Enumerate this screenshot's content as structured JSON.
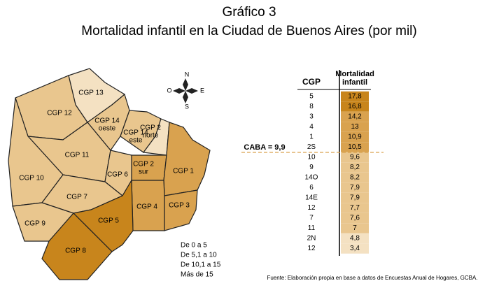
{
  "title": "Gráfico 3",
  "subtitle": "Mortalidad infantil en la Ciudad de Buenos Aires (por mil)",
  "compass": {
    "north": "N",
    "south": "S",
    "east": "E",
    "west": "O"
  },
  "map_labels": [
    "CGP 13",
    "CGP 12",
    "CGP 14\noeste",
    "CGP 14\neste",
    "CGP 2\nnorte",
    "CGP 11",
    "CGP 10",
    "CGP 2\nsur",
    "CGP 6",
    "CGP 1",
    "CGP 7",
    "CGP 4",
    "CGP 3",
    "CGP 9",
    "CGP 5",
    "CGP 8"
  ],
  "legend": [
    "De 0 a 5",
    "De 5,1 a 10",
    "De 10,1 a 15",
    "Más de 15"
  ],
  "table": {
    "headers": [
      "CGP",
      "Mortalidad\ninfantil"
    ],
    "rows": [
      {
        "cgp": "5",
        "value": "17,8",
        "color": "#c8851c"
      },
      {
        "cgp": "8",
        "value": "16,8",
        "color": "#c8851c"
      },
      {
        "cgp": "3",
        "value": "14,2",
        "color": "#d9a24f"
      },
      {
        "cgp": "4",
        "value": "13",
        "color": "#d9a24f"
      },
      {
        "cgp": "1",
        "value": "10,9",
        "color": "#d9a24f"
      },
      {
        "cgp": "2S",
        "value": "10,5",
        "color": "#d9a24f"
      },
      {
        "cgp": "10",
        "value": "9,6",
        "color": "#e9c68e"
      },
      {
        "cgp": "9",
        "value": "8,2",
        "color": "#e9c68e"
      },
      {
        "cgp": "14O",
        "value": "8,2",
        "color": "#e9c68e"
      },
      {
        "cgp": "6",
        "value": "7,9",
        "color": "#e9c68e"
      },
      {
        "cgp": "14E",
        "value": "7,9",
        "color": "#e9c68e"
      },
      {
        "cgp": "12",
        "value": "7,7",
        "color": "#e9c68e"
      },
      {
        "cgp": "7",
        "value": "7,6",
        "color": "#e9c68e"
      },
      {
        "cgp": "11",
        "value": "7",
        "color": "#e9c68e"
      },
      {
        "cgp": "2N",
        "value": "4,8",
        "color": "#f4e1c2"
      },
      {
        "cgp": "12",
        "value": "3,4",
        "color": "#f4e1c2"
      }
    ]
  },
  "reference_line": "CABA = 9,9",
  "source": "Fuente: Elaboración propia en base a datos de Encuestas Anual de Hogares, GCBA."
}
